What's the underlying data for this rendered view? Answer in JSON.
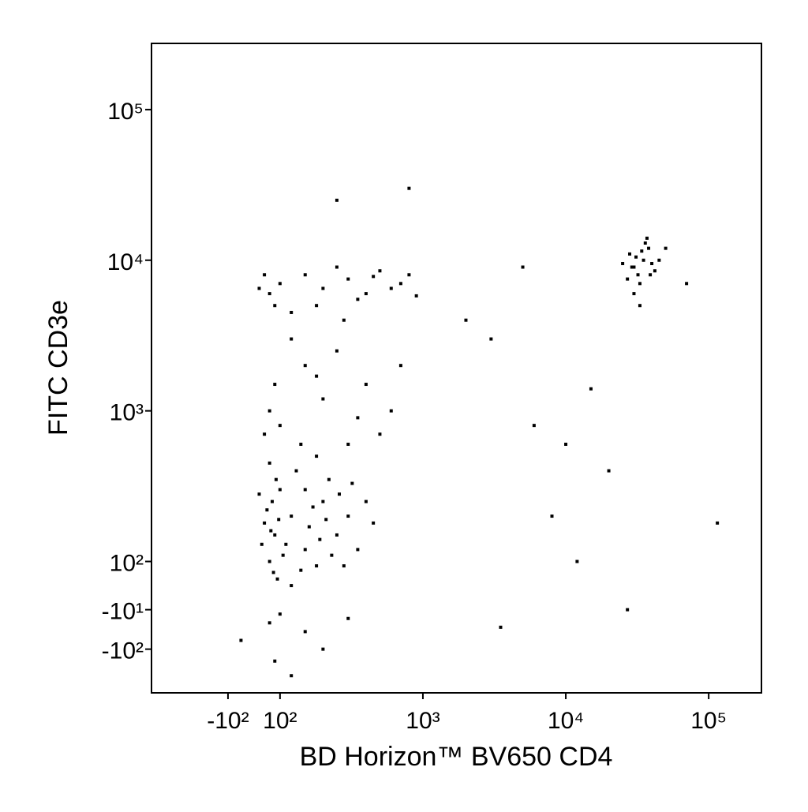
{
  "chart_data": {
    "type": "scatter",
    "x_label": "BD Horizon™ BV650 CD4",
    "y_label": "FITC CD3e",
    "xscale": "biexponential",
    "yscale": "biexponential",
    "color": "#000000",
    "xlim": [
      -343,
      234000
    ],
    "ylim": [
      -195,
      275000
    ],
    "xticks": [
      {
        "value": -100,
        "label": "-10²"
      },
      {
        "value": 100,
        "label": "10²"
      },
      {
        "value": 1000,
        "label": "10³"
      },
      {
        "value": 10000,
        "label": "10⁴"
      },
      {
        "value": 100000,
        "label": "10⁵"
      }
    ],
    "yticks": [
      {
        "value": -100,
        "label": "-10²"
      },
      {
        "value": -10,
        "label": "-10¹"
      },
      {
        "value": 100,
        "label": "10²"
      },
      {
        "value": 1000,
        "label": "10³"
      },
      {
        "value": 10000,
        "label": "10⁴"
      },
      {
        "value": 100000,
        "label": "10⁵"
      }
    ],
    "x": [
      80,
      120,
      60,
      150,
      200,
      100,
      40,
      250,
      180,
      90,
      130,
      300,
      70,
      220,
      160,
      110,
      350,
      50,
      140,
      260,
      190,
      85,
      400,
      30,
      170,
      95,
      230,
      120,
      280,
      65,
      150,
      320,
      75,
      210,
      105,
      450,
      20,
      180,
      140,
      60,
      100,
      150,
      60,
      200,
      80,
      -50,
      300,
      120,
      100,
      200,
      300,
      150,
      400,
      60,
      500,
      250,
      80,
      600,
      350,
      120,
      700,
      40,
      180,
      60,
      100,
      150,
      200,
      300,
      400,
      500,
      700,
      80,
      250,
      120,
      350,
      600,
      40,
      180,
      450,
      800,
      20,
      280,
      900,
      30000,
      35000,
      32000,
      38000,
      28000,
      40000,
      33000,
      36000,
      31000,
      42000,
      29000,
      34000,
      45000,
      27000,
      37000,
      30000,
      39000,
      25000,
      50000,
      33000,
      800,
      250,
      3000,
      5000,
      10000,
      20000,
      115000,
      8000,
      15000,
      2000,
      6000,
      12000,
      27000,
      3500,
      70000
    ],
    "y": [
      150,
      200,
      100,
      120,
      250,
      300,
      180,
      150,
      90,
      60,
      400,
      200,
      250,
      350,
      170,
      130,
      120,
      220,
      80,
      280,
      140,
      350,
      250,
      130,
      230,
      190,
      110,
      45,
      90,
      160,
      300,
      330,
      75,
      190,
      110,
      180,
      280,
      500,
      600,
      450,
      -20,
      -60,
      -40,
      -100,
      -120,
      -80,
      -30,
      -150,
      800,
      1200,
      600,
      2000,
      1500,
      1000,
      700,
      2500,
      1500,
      1000,
      900,
      3000,
      2000,
      700,
      1700,
      6000,
      7000,
      8000,
      6500,
      7500,
      6000,
      8500,
      7000,
      5000,
      9000,
      4500,
      5500,
      6500,
      8000,
      5000,
      7800,
      8000,
      6500,
      4000,
      5800,
      9000,
      10000,
      8000,
      12000,
      11000,
      9500,
      7000,
      13000,
      10500,
      8500,
      9000,
      11500,
      10000,
      7500,
      14000,
      6000,
      8000,
      9500,
      12000,
      5000,
      30000,
      25000,
      3000,
      9000,
      600,
      400,
      180,
      200,
      1400,
      4000,
      800,
      100,
      -10,
      -50,
      7000
    ]
  }
}
